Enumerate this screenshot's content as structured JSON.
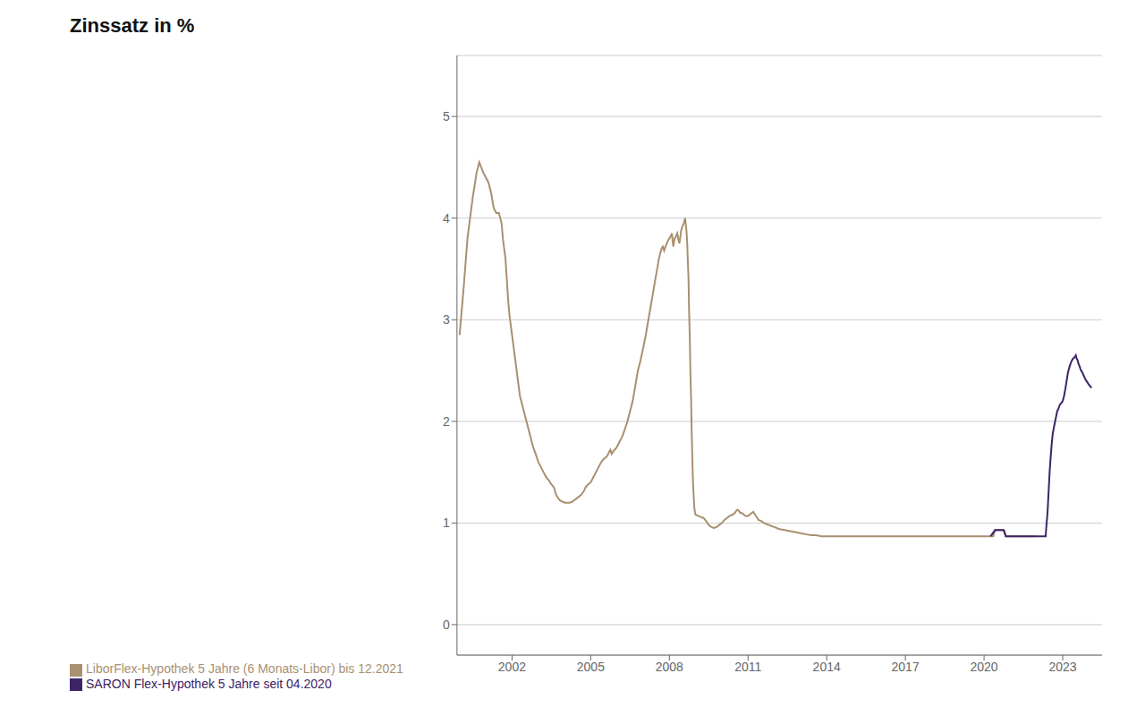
{
  "chart_data": {
    "type": "line",
    "title": "Zinssatz in %",
    "xlim": [
      1999.9,
      2024.5
    ],
    "xticks": [
      2002,
      2005,
      2008,
      2011,
      2014,
      2017,
      2020,
      2023
    ],
    "ylim": [
      -0.3,
      5.6
    ],
    "yticks": [
      0,
      1,
      2,
      3,
      4,
      5
    ],
    "grid": true,
    "legend": "lower left",
    "series": [
      {
        "name": "LiborFlex-Hypothek 5 Jahre (6 Monats-Libor) bis 12.2021",
        "color": "#a89070",
        "x": [
          2000.0,
          2000.15,
          2000.3,
          2000.5,
          2000.65,
          2000.75,
          2000.9,
          2001.0,
          2001.1,
          2001.2,
          2001.3,
          2001.4,
          2001.5,
          2001.6,
          2001.65,
          2001.7,
          2001.75,
          2001.8,
          2001.85,
          2001.9,
          2001.95,
          2002.0,
          2002.05,
          2002.1,
          2002.15,
          2002.2,
          2002.25,
          2002.3,
          2002.35,
          2002.4,
          2002.45,
          2002.5,
          2002.6,
          2002.7,
          2002.8,
          2002.9,
          2003.0,
          2003.1,
          2003.2,
          2003.3,
          2003.4,
          2003.5,
          2003.6,
          2003.65,
          2003.7,
          2003.75,
          2003.8,
          2003.85,
          2003.9,
          2003.95,
          2004.0,
          2004.1,
          2004.2,
          2004.3,
          2004.35,
          2004.4,
          2004.45,
          2004.5,
          2004.55,
          2004.6,
          2004.65,
          2004.7,
          2004.75,
          2004.8,
          2004.9,
          2005.0,
          2005.1,
          2005.2,
          2005.3,
          2005.4,
          2005.5,
          2005.6,
          2005.65,
          2005.7,
          2005.75,
          2005.8,
          2005.85,
          2005.9,
          2005.95,
          2006.0,
          2006.1,
          2006.2,
          2006.3,
          2006.4,
          2006.5,
          2006.6,
          2006.7,
          2006.8,
          2006.9,
          2007.0,
          2007.1,
          2007.2,
          2007.3,
          2007.4,
          2007.5,
          2007.55,
          2007.6,
          2007.65,
          2007.7,
          2007.75,
          2007.8,
          2007.85,
          2007.9,
          2007.95,
          2008.0,
          2008.05,
          2008.1,
          2008.12,
          2008.15,
          2008.2,
          2008.25,
          2008.3,
          2008.35,
          2008.38,
          2008.42,
          2008.45,
          2008.5,
          2008.55,
          2008.58,
          2008.6,
          2008.62,
          2008.65,
          2008.68,
          2008.7,
          2008.73,
          2008.75,
          2008.78,
          2008.8,
          2008.83,
          2008.85,
          2008.88,
          2008.9,
          2008.93,
          2008.95,
          2008.98,
          2009.0,
          2009.1,
          2009.2,
          2009.3,
          2009.4,
          2009.5,
          2009.6,
          2009.7,
          2009.8,
          2009.9,
          2010.0,
          2010.1,
          2010.2,
          2010.3,
          2010.4,
          2010.5,
          2010.55,
          2010.6,
          2010.65,
          2010.7,
          2010.75,
          2010.8,
          2010.85,
          2010.9,
          2010.95,
          2011.0,
          2011.05,
          2011.1,
          2011.15,
          2011.2,
          2011.22,
          2011.25,
          2011.3,
          2011.35,
          2011.4,
          2011.5,
          2011.6,
          2011.7,
          2011.8,
          2011.9,
          2012.0,
          2012.2,
          2012.4,
          2012.6,
          2012.8,
          2013.0,
          2013.2,
          2013.4,
          2013.6,
          2013.8,
          2014.0,
          2014.2,
          2014.4,
          2014.6,
          2014.8,
          2015.0,
          2015.5,
          2016.0,
          2016.5,
          2017.0,
          2017.5,
          2018.0,
          2018.5,
          2019.0,
          2019.5,
          2020.0,
          2020.25,
          2020.35,
          2020.42,
          2020.5,
          2020.58,
          2020.67,
          2020.75,
          2020.83,
          2020.9,
          2021.0,
          2021.25,
          2021.5,
          2021.75,
          2021.9,
          2022.0
        ],
        "values": [
          2.85,
          3.3,
          3.8,
          4.2,
          4.45,
          4.55,
          4.45,
          4.4,
          4.35,
          4.25,
          4.1,
          4.05,
          4.05,
          3.95,
          3.8,
          3.7,
          3.6,
          3.4,
          3.2,
          3.05,
          2.95,
          2.85,
          2.75,
          2.65,
          2.55,
          2.45,
          2.35,
          2.25,
          2.2,
          2.15,
          2.1,
          2.05,
          1.95,
          1.85,
          1.75,
          1.68,
          1.6,
          1.55,
          1.5,
          1.45,
          1.42,
          1.38,
          1.35,
          1.3,
          1.27,
          1.25,
          1.23,
          1.22,
          1.21,
          1.21,
          1.2,
          1.2,
          1.2,
          1.21,
          1.22,
          1.23,
          1.24,
          1.25,
          1.26,
          1.27,
          1.28,
          1.3,
          1.32,
          1.35,
          1.38,
          1.4,
          1.45,
          1.5,
          1.55,
          1.6,
          1.63,
          1.65,
          1.67,
          1.7,
          1.72,
          1.68,
          1.7,
          1.72,
          1.73,
          1.75,
          1.8,
          1.85,
          1.92,
          2.0,
          2.1,
          2.2,
          2.35,
          2.5,
          2.6,
          2.72,
          2.85,
          3.0,
          3.15,
          3.3,
          3.45,
          3.52,
          3.6,
          3.65,
          3.7,
          3.72,
          3.68,
          3.72,
          3.75,
          3.78,
          3.8,
          3.82,
          3.85,
          3.78,
          3.72,
          3.8,
          3.82,
          3.85,
          3.78,
          3.75,
          3.82,
          3.88,
          3.92,
          3.95,
          3.98,
          4.0,
          3.95,
          3.88,
          3.75,
          3.6,
          3.4,
          3.1,
          2.8,
          2.5,
          2.2,
          1.9,
          1.6,
          1.4,
          1.25,
          1.15,
          1.1,
          1.08,
          1.07,
          1.06,
          1.05,
          1.02,
          0.98,
          0.96,
          0.95,
          0.96,
          0.98,
          1.0,
          1.03,
          1.05,
          1.07,
          1.08,
          1.1,
          1.12,
          1.13,
          1.12,
          1.1,
          1.1,
          1.09,
          1.08,
          1.07,
          1.07,
          1.07,
          1.08,
          1.09,
          1.1,
          1.11,
          1.1,
          1.09,
          1.07,
          1.05,
          1.03,
          1.02,
          1.0,
          0.99,
          0.98,
          0.97,
          0.96,
          0.94,
          0.93,
          0.92,
          0.91,
          0.9,
          0.89,
          0.88,
          0.88,
          0.87,
          0.87,
          0.87,
          0.87,
          0.87,
          0.87,
          0.87,
          0.87,
          0.87,
          0.87,
          0.87,
          0.87,
          0.87,
          0.87,
          0.87,
          0.87,
          0.87,
          0.87,
          0.87,
          0.93,
          0.93,
          0.93,
          0.93,
          0.93,
          0.87,
          0.87,
          0.87,
          0.87,
          0.87,
          0.87,
          0.87,
          0.87
        ]
      },
      {
        "name": "SARON Flex-Hypothek 5 Jahre seit 04.2020",
        "color": "#3d2466",
        "x": [
          2020.25,
          2020.42,
          2020.5,
          2020.67,
          2020.75,
          2020.83,
          2021.0,
          2021.5,
          2022.0,
          2022.1,
          2022.2,
          2022.3,
          2022.35,
          2022.37,
          2022.42,
          2022.46,
          2022.5,
          2022.54,
          2022.58,
          2022.62,
          2022.67,
          2022.71,
          2022.75,
          2022.79,
          2022.83,
          2022.87,
          2022.9,
          2022.95,
          2023.0,
          2023.05,
          2023.1,
          2023.15,
          2023.2,
          2023.25,
          2023.3,
          2023.35,
          2023.4,
          2023.45,
          2023.5,
          2023.53,
          2023.57,
          2023.6,
          2023.63,
          2023.67,
          2023.7,
          2023.75,
          2023.8,
          2023.85,
          2023.9,
          2023.95,
          2024.0,
          2024.1
        ],
        "values": [
          0.87,
          0.93,
          0.93,
          0.93,
          0.93,
          0.87,
          0.87,
          0.87,
          0.87,
          0.87,
          0.87,
          0.87,
          0.87,
          0.95,
          1.1,
          1.3,
          1.5,
          1.65,
          1.78,
          1.88,
          1.95,
          2.0,
          2.05,
          2.1,
          2.12,
          2.15,
          2.17,
          2.18,
          2.2,
          2.25,
          2.32,
          2.4,
          2.48,
          2.53,
          2.57,
          2.6,
          2.62,
          2.63,
          2.65,
          2.62,
          2.6,
          2.57,
          2.55,
          2.52,
          2.5,
          2.48,
          2.45,
          2.42,
          2.4,
          2.38,
          2.36,
          2.33
        ]
      }
    ]
  }
}
